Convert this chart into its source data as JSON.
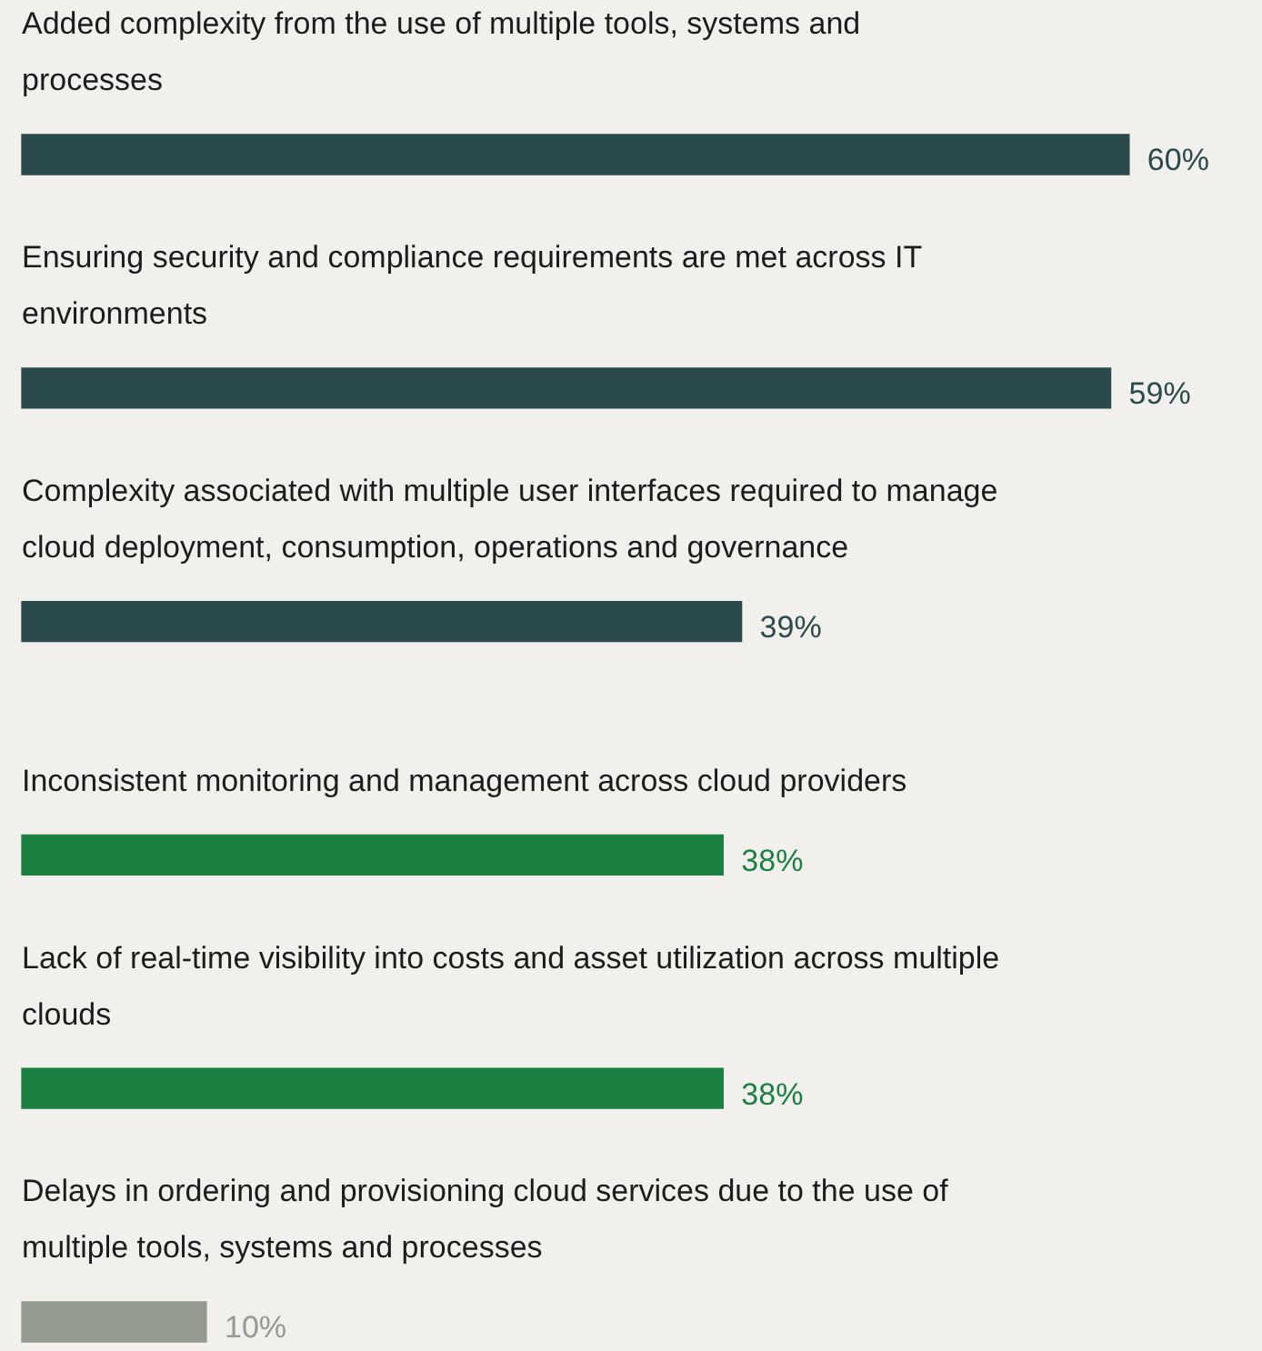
{
  "chart_data": {
    "type": "bar",
    "orientation": "horizontal",
    "categories": [
      "Added complexity from the use of multiple tools, systems and processes",
      "Ensuring security and compliance requirements are met across IT environments",
      "Complexity associated with multiple user interfaces required to manage cloud deployment, consumption, operations and governance",
      "Inconsistent monitoring and management across cloud providers",
      "Lack of real-time visibility into costs and asset utilization across multiple clouds",
      "Delays in ordering and provisioning cloud services due to the use of multiple tools, systems and processes"
    ],
    "values": [
      60,
      59,
      39,
      38,
      38,
      10
    ],
    "value_labels": [
      "60%",
      "59%",
      "39%",
      "38%",
      "38%",
      "10%"
    ],
    "colors": [
      "#2b4a4c",
      "#2b4a4c",
      "#2b4a4c",
      "#1b7f42",
      "#1b7f42",
      "#939a8e"
    ],
    "legend": false
  }
}
